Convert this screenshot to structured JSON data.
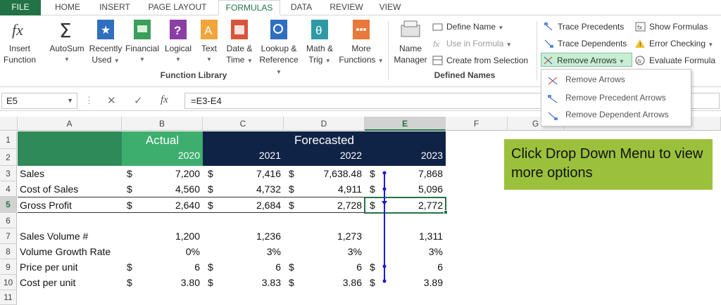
{
  "tabs": [
    "FILE",
    "HOME",
    "INSERT",
    "PAGE LAYOUT",
    "FORMULAS",
    "DATA",
    "REVIEW",
    "VIEW"
  ],
  "ribbon": {
    "insert_function": [
      "Insert",
      "Function"
    ],
    "autosum": "AutoSum",
    "recently_used": [
      "Recently",
      "Used"
    ],
    "financial": "Financial",
    "logical": "Logical",
    "text": "Text",
    "date_time": [
      "Date &",
      "Time"
    ],
    "lookup": [
      "Lookup &",
      "Reference"
    ],
    "math": [
      "Math &",
      "Trig"
    ],
    "more": [
      "More",
      "Functions"
    ],
    "function_library_label": "Function Library",
    "name_manager": [
      "Name",
      "Manager"
    ],
    "define_name": "Define Name",
    "use_in_formula": "Use in Formula",
    "create_from_selection": "Create from Selection",
    "defined_names_label": "Defined Names",
    "trace_precedents": "Trace Precedents",
    "trace_dependents": "Trace Dependents",
    "remove_arrows": "Remove Arrows",
    "show_formulas": "Show Formulas",
    "error_checking": "Error Checking",
    "evaluate_formula": "Evaluate Formula"
  },
  "menu": {
    "items": [
      "Remove Arrows",
      "Remove Precedent Arrows",
      "Remove Dependent Arrows"
    ]
  },
  "formula_bar": {
    "name_box": "E5",
    "fx": "fx",
    "formula": "=E3-E4"
  },
  "columns": [
    "A",
    "B",
    "C",
    "D",
    "E",
    "F",
    "G"
  ],
  "rows": [
    "1",
    "2",
    "3",
    "4",
    "5",
    "6",
    "7",
    "8",
    "9",
    "10",
    "11"
  ],
  "sheet": {
    "actual": "Actual",
    "forecasted": "Forecasted",
    "years": [
      "2020",
      "2021",
      "2022",
      "2023"
    ],
    "dollar": "$",
    "labels": [
      "Sales",
      "Cost of Sales",
      "Gross Profit",
      "Sales Volume #",
      "Volume Growth Rate",
      "Price per unit",
      "Cost per unit"
    ],
    "sales": [
      "7,200",
      "7,416",
      "7,638.48",
      "7,868"
    ],
    "cost_of_sales": [
      "4,560",
      "4,732",
      "4,911",
      "5,096"
    ],
    "gross_profit": [
      "2,640",
      "2,684",
      "2,728",
      "2,772"
    ],
    "sales_volume": [
      "1,200",
      "1,236",
      "1,273",
      "1,311"
    ],
    "volume_growth": [
      "0%",
      "3%",
      "3%",
      "3%"
    ],
    "price_per_unit": [
      "6",
      "6",
      "6",
      "6"
    ],
    "cost_per_unit": [
      "3.80",
      "3.83",
      "3.86",
      "3.89"
    ]
  },
  "callout": "Click Drop Down Menu to view more options",
  "colors": {
    "excel_green": "#217346",
    "actual_fill": "#3dae6e",
    "forecast_fill": "#0f2346",
    "callout_fill": "#9bc13c",
    "arrow_blue": "#1a1ae0"
  }
}
